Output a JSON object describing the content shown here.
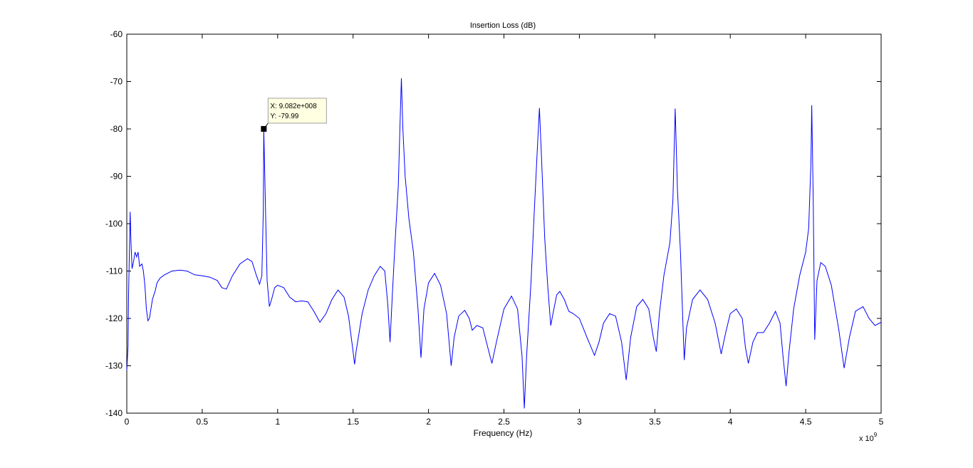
{
  "chart_data": {
    "type": "line",
    "title": "Insertion Loss (dB)",
    "xlabel": "Frequency (Hz)",
    "ylabel": "",
    "x_exponent_label": "x 10",
    "x_exponent_power": "9",
    "xlim": [
      0,
      5
    ],
    "ylim": [
      -140,
      -60
    ],
    "xticks": [
      0,
      0.5,
      1,
      1.5,
      2,
      2.5,
      3,
      3.5,
      4,
      4.5,
      5
    ],
    "xtick_labels": [
      "0",
      "0.5",
      "1",
      "1.5",
      "2",
      "2.5",
      "3",
      "3.5",
      "4",
      "4.5",
      "5"
    ],
    "yticks": [
      -60,
      -70,
      -80,
      -90,
      -100,
      -110,
      -120,
      -130,
      -140
    ],
    "ytick_labels": [
      "-60",
      "-70",
      "-80",
      "-90",
      "-100",
      "-110",
      "-120",
      "-130",
      "-140"
    ],
    "grid": false,
    "line_color": "#0000ff",
    "series": [
      {
        "points": [
          [
            0.0,
            -131
          ],
          [
            0.008,
            -126
          ],
          [
            0.012,
            -115
          ],
          [
            0.018,
            -105
          ],
          [
            0.022,
            -97.5
          ],
          [
            0.028,
            -104
          ],
          [
            0.035,
            -109.5
          ],
          [
            0.045,
            -108
          ],
          [
            0.055,
            -106
          ],
          [
            0.065,
            -107
          ],
          [
            0.075,
            -106
          ],
          [
            0.085,
            -109
          ],
          [
            0.1,
            -108.5
          ],
          [
            0.11,
            -110
          ],
          [
            0.12,
            -113
          ],
          [
            0.13,
            -118
          ],
          [
            0.14,
            -120.5
          ],
          [
            0.15,
            -120
          ],
          [
            0.16,
            -118
          ],
          [
            0.17,
            -116
          ],
          [
            0.18,
            -115
          ],
          [
            0.19,
            -114
          ],
          [
            0.2,
            -112.5
          ],
          [
            0.22,
            -111.5
          ],
          [
            0.25,
            -110.8
          ],
          [
            0.3,
            -110
          ],
          [
            0.35,
            -109.8
          ],
          [
            0.4,
            -110
          ],
          [
            0.45,
            -110.8
          ],
          [
            0.5,
            -111
          ],
          [
            0.55,
            -111.3
          ],
          [
            0.6,
            -112
          ],
          [
            0.63,
            -113.5
          ],
          [
            0.66,
            -113.8
          ],
          [
            0.7,
            -111
          ],
          [
            0.75,
            -108.5
          ],
          [
            0.8,
            -107.4
          ],
          [
            0.83,
            -108
          ],
          [
            0.86,
            -111
          ],
          [
            0.88,
            -112.8
          ],
          [
            0.895,
            -111
          ],
          [
            0.905,
            -97
          ],
          [
            0.908,
            -80
          ],
          [
            0.912,
            -86
          ],
          [
            0.92,
            -98
          ],
          [
            0.93,
            -112
          ],
          [
            0.945,
            -117.5
          ],
          [
            0.96,
            -116
          ],
          [
            0.98,
            -113.5
          ],
          [
            1.0,
            -113
          ],
          [
            1.04,
            -113.5
          ],
          [
            1.08,
            -115.5
          ],
          [
            1.12,
            -116.5
          ],
          [
            1.16,
            -116.3
          ],
          [
            1.2,
            -116.5
          ],
          [
            1.24,
            -118.5
          ],
          [
            1.28,
            -120.8
          ],
          [
            1.32,
            -119
          ],
          [
            1.36,
            -116
          ],
          [
            1.4,
            -114
          ],
          [
            1.44,
            -115.5
          ],
          [
            1.47,
            -119.5
          ],
          [
            1.5,
            -127
          ],
          [
            1.51,
            -129.7
          ],
          [
            1.52,
            -127
          ],
          [
            1.56,
            -119
          ],
          [
            1.6,
            -114
          ],
          [
            1.64,
            -111
          ],
          [
            1.68,
            -109
          ],
          [
            1.71,
            -110
          ],
          [
            1.73,
            -117
          ],
          [
            1.745,
            -125
          ],
          [
            1.76,
            -115
          ],
          [
            1.78,
            -103
          ],
          [
            1.8,
            -92
          ],
          [
            1.81,
            -80
          ],
          [
            1.82,
            -69.3
          ],
          [
            1.83,
            -80
          ],
          [
            1.845,
            -90
          ],
          [
            1.87,
            -99
          ],
          [
            1.9,
            -106
          ],
          [
            1.93,
            -118
          ],
          [
            1.95,
            -128.3
          ],
          [
            1.97,
            -118
          ],
          [
            2.0,
            -112.5
          ],
          [
            2.04,
            -110.5
          ],
          [
            2.08,
            -113
          ],
          [
            2.12,
            -119
          ],
          [
            2.15,
            -130
          ],
          [
            2.17,
            -124
          ],
          [
            2.2,
            -119.5
          ],
          [
            2.24,
            -118.3
          ],
          [
            2.27,
            -120
          ],
          [
            2.29,
            -122.5
          ],
          [
            2.32,
            -121.5
          ],
          [
            2.36,
            -122
          ],
          [
            2.4,
            -127
          ],
          [
            2.42,
            -129.5
          ],
          [
            2.45,
            -125
          ],
          [
            2.5,
            -118
          ],
          [
            2.55,
            -115.3
          ],
          [
            2.59,
            -118
          ],
          [
            2.62,
            -128
          ],
          [
            2.635,
            -139
          ],
          [
            2.65,
            -128
          ],
          [
            2.68,
            -112
          ],
          [
            2.7,
            -98
          ],
          [
            2.72,
            -85
          ],
          [
            2.735,
            -75.6
          ],
          [
            2.75,
            -87
          ],
          [
            2.77,
            -103
          ],
          [
            2.79,
            -113
          ],
          [
            2.81,
            -121.5
          ],
          [
            2.825,
            -119
          ],
          [
            2.85,
            -115
          ],
          [
            2.87,
            -114.3
          ],
          [
            2.9,
            -116
          ],
          [
            2.93,
            -118.5
          ],
          [
            2.96,
            -119
          ],
          [
            3.0,
            -120
          ],
          [
            3.05,
            -124
          ],
          [
            3.1,
            -127.8
          ],
          [
            3.13,
            -125
          ],
          [
            3.16,
            -121
          ],
          [
            3.2,
            -119
          ],
          [
            3.24,
            -119.5
          ],
          [
            3.28,
            -125
          ],
          [
            3.31,
            -133
          ],
          [
            3.34,
            -124
          ],
          [
            3.38,
            -117.5
          ],
          [
            3.42,
            -116
          ],
          [
            3.46,
            -118
          ],
          [
            3.49,
            -124
          ],
          [
            3.51,
            -127
          ],
          [
            3.53,
            -119
          ],
          [
            3.56,
            -111
          ],
          [
            3.6,
            -104
          ],
          [
            3.62,
            -95
          ],
          [
            3.635,
            -75.7
          ],
          [
            3.65,
            -93
          ],
          [
            3.67,
            -106
          ],
          [
            3.685,
            -120
          ],
          [
            3.695,
            -128.8
          ],
          [
            3.71,
            -122
          ],
          [
            3.75,
            -116
          ],
          [
            3.8,
            -114
          ],
          [
            3.85,
            -116
          ],
          [
            3.9,
            -121
          ],
          [
            3.94,
            -127.5
          ],
          [
            3.97,
            -123
          ],
          [
            4.0,
            -119
          ],
          [
            4.04,
            -118
          ],
          [
            4.08,
            -120
          ],
          [
            4.1,
            -126
          ],
          [
            4.12,
            -129.5
          ],
          [
            4.15,
            -125
          ],
          [
            4.18,
            -123
          ],
          [
            4.22,
            -123
          ],
          [
            4.26,
            -121
          ],
          [
            4.3,
            -118.5
          ],
          [
            4.33,
            -121
          ],
          [
            4.35,
            -128
          ],
          [
            4.37,
            -134.3
          ],
          [
            4.39,
            -127
          ],
          [
            4.42,
            -118
          ],
          [
            4.46,
            -111
          ],
          [
            4.5,
            -106
          ],
          [
            4.52,
            -101
          ],
          [
            4.535,
            -87
          ],
          [
            4.54,
            -75
          ],
          [
            4.55,
            -95
          ],
          [
            4.56,
            -124.5
          ],
          [
            4.575,
            -112
          ],
          [
            4.6,
            -108.2
          ],
          [
            4.63,
            -109
          ],
          [
            4.67,
            -113
          ],
          [
            4.72,
            -122.5
          ],
          [
            4.755,
            -130.5
          ],
          [
            4.79,
            -124
          ],
          [
            4.83,
            -118.5
          ],
          [
            4.88,
            -117.5
          ],
          [
            4.92,
            -120
          ],
          [
            4.96,
            -121.5
          ],
          [
            5.0,
            -120.8
          ]
        ]
      }
    ],
    "datatip": {
      "x": 0.9082,
      "y": -79.99,
      "x_text": "X: 9.082e+008",
      "y_text": "Y: -79.99"
    }
  }
}
